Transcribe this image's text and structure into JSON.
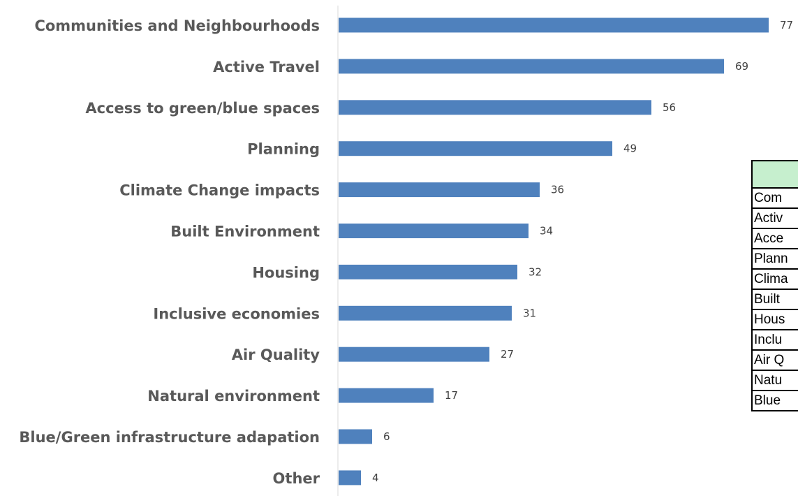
{
  "chart_data": {
    "type": "bar",
    "orientation": "horizontal",
    "categories": [
      "Communities and Neighbourhoods",
      "Active Travel",
      "Access to green/blue spaces",
      "Planning",
      "Climate Change impacts",
      "Built Environment",
      "Housing",
      "Inclusive economies",
      "Air Quality",
      "Natural environment",
      "Blue/Green infrastructure adapation",
      "Other"
    ],
    "values": [
      77,
      69,
      56,
      49,
      36,
      34,
      32,
      31,
      27,
      17,
      6,
      4
    ],
    "data_labels": [
      "77",
      "69",
      "56",
      "49",
      "36",
      "34",
      "32",
      "31",
      "27",
      "17",
      "6",
      "4"
    ],
    "bar_color": "#4f81bd",
    "xlim": [
      0,
      80
    ],
    "grid": false,
    "legend": "none"
  },
  "table": {
    "header": "",
    "header_color": "#c6efce",
    "rows": [
      "Com",
      "Activ",
      "Acce",
      "Plann",
      "Clima",
      "Built",
      "Hous",
      "Inclu",
      "Air Q",
      "Natu",
      "Blue"
    ]
  }
}
